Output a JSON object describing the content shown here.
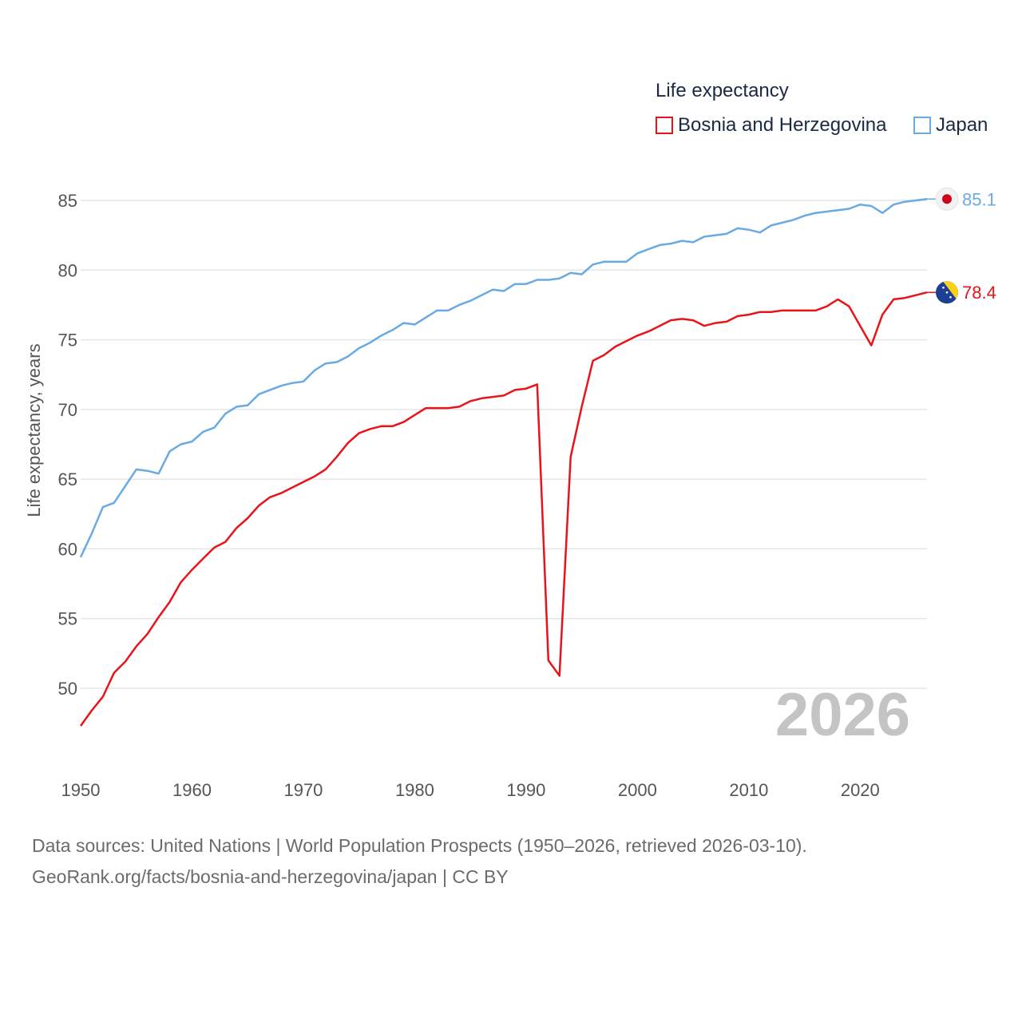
{
  "chart_data": {
    "type": "line",
    "legend_title": "Life expectancy",
    "ylabel": "Life expectancy, years",
    "xlim": [
      1950,
      2026
    ],
    "ylim": [
      46,
      87
    ],
    "yticks": [
      50,
      55,
      60,
      65,
      70,
      75,
      80,
      85
    ],
    "xticks": [
      1950,
      1960,
      1970,
      1980,
      1990,
      2000,
      2010,
      2020
    ],
    "current_year": "2026",
    "legend_position": "top-right",
    "series": [
      {
        "name": "Bosnia and Herzegovina",
        "color": "#e8141a",
        "end_label": "78.4",
        "flag": "bosnia-and-herzegovina-flag",
        "x": [
          1950,
          1951,
          1952,
          1953,
          1954,
          1955,
          1956,
          1957,
          1958,
          1959,
          1960,
          1961,
          1962,
          1963,
          1964,
          1965,
          1966,
          1967,
          1968,
          1969,
          1970,
          1971,
          1972,
          1973,
          1974,
          1975,
          1976,
          1977,
          1978,
          1979,
          1980,
          1981,
          1982,
          1983,
          1984,
          1985,
          1986,
          1987,
          1988,
          1989,
          1990,
          1991,
          1992,
          1993,
          1994,
          1995,
          1996,
          1997,
          1998,
          1999,
          2000,
          2001,
          2002,
          2003,
          2004,
          2005,
          2006,
          2007,
          2008,
          2009,
          2010,
          2011,
          2012,
          2013,
          2014,
          2015,
          2016,
          2017,
          2018,
          2019,
          2020,
          2021,
          2022,
          2023,
          2024,
          2025,
          2026
        ],
        "values": [
          47.3,
          48.4,
          49.4,
          51.1,
          51.9,
          53.0,
          53.9,
          55.1,
          56.2,
          57.6,
          58.5,
          59.3,
          60.1,
          60.5,
          61.5,
          62.2,
          63.1,
          63.7,
          64.0,
          64.4,
          64.8,
          65.2,
          65.7,
          66.6,
          67.6,
          68.3,
          68.6,
          68.8,
          68.8,
          69.1,
          69.6,
          70.1,
          70.1,
          70.1,
          70.2,
          70.6,
          70.8,
          70.9,
          71.0,
          71.4,
          71.5,
          71.8,
          52.0,
          50.9,
          66.6,
          70.2,
          73.5,
          73.9,
          74.5,
          74.9,
          75.3,
          75.6,
          76.0,
          76.4,
          76.5,
          76.4,
          76.0,
          76.2,
          76.3,
          76.7,
          76.8,
          77.0,
          77.0,
          77.1,
          77.1,
          77.1,
          77.1,
          77.4,
          77.9,
          77.4,
          76.0,
          74.6,
          76.8,
          77.9,
          78.0,
          78.2,
          78.4
        ]
      },
      {
        "name": "Japan",
        "color": "#6aaae4",
        "end_label": "85.1",
        "flag": "japan-flag",
        "x": [
          1950,
          1951,
          1952,
          1953,
          1954,
          1955,
          1956,
          1957,
          1958,
          1959,
          1960,
          1961,
          1962,
          1963,
          1964,
          1965,
          1966,
          1967,
          1968,
          1969,
          1970,
          1971,
          1972,
          1973,
          1974,
          1975,
          1976,
          1977,
          1978,
          1979,
          1980,
          1981,
          1982,
          1983,
          1984,
          1985,
          1986,
          1987,
          1988,
          1989,
          1990,
          1991,
          1992,
          1993,
          1994,
          1995,
          1996,
          1997,
          1998,
          1999,
          2000,
          2001,
          2002,
          2003,
          2004,
          2005,
          2006,
          2007,
          2008,
          2009,
          2010,
          2011,
          2012,
          2013,
          2014,
          2015,
          2016,
          2017,
          2018,
          2019,
          2020,
          2021,
          2022,
          2023,
          2024,
          2025,
          2026
        ],
        "values": [
          59.4,
          61.1,
          63.0,
          63.3,
          64.5,
          65.7,
          65.6,
          65.4,
          67.0,
          67.5,
          67.7,
          68.4,
          68.7,
          69.7,
          70.2,
          70.3,
          71.1,
          71.4,
          71.7,
          71.9,
          72.0,
          72.8,
          73.3,
          73.4,
          73.8,
          74.4,
          74.8,
          75.3,
          75.7,
          76.2,
          76.1,
          76.6,
          77.1,
          77.1,
          77.5,
          77.8,
          78.2,
          78.6,
          78.5,
          79.0,
          79.0,
          79.3,
          79.3,
          79.4,
          79.8,
          79.7,
          80.4,
          80.6,
          80.6,
          80.6,
          81.2,
          81.5,
          81.8,
          81.9,
          82.1,
          82.0,
          82.4,
          82.5,
          82.6,
          83.0,
          82.9,
          82.7,
          83.2,
          83.4,
          83.6,
          83.9,
          84.1,
          84.2,
          84.3,
          84.4,
          84.7,
          84.6,
          84.1,
          84.7,
          84.9,
          85.0,
          85.1
        ]
      }
    ]
  },
  "footer": {
    "source_line": "Data sources: United Nations | World Population Prospects (1950–2026, retrieved 2026-03-10).",
    "url_line": "GeoRank.org/facts/bosnia-and-herzegovina/japan | CC BY"
  }
}
